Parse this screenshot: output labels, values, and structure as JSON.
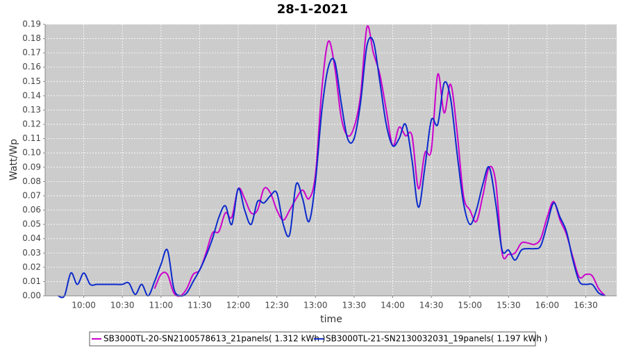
{
  "chart_data": {
    "type": "line",
    "title": "28-1-2021",
    "x_label": "time",
    "y_label": "Watt/Wp",
    "xlim": [
      "09:30",
      "16:54"
    ],
    "xticks": [
      "10:00",
      "10:30",
      "11:00",
      "11:30",
      "12:00",
      "12:30",
      "13:00",
      "13:30",
      "14:00",
      "14:30",
      "15:00",
      "15:30",
      "16:00",
      "16:30"
    ],
    "ylim": [
      0,
      0.19
    ],
    "yticks": [
      {
        "value": 0,
        "label": "0.00"
      },
      {
        "value": 0.01,
        "label": "0.01"
      },
      {
        "value": 0.02,
        "label": "0.02"
      },
      {
        "value": 0.03,
        "label": "0.03"
      },
      {
        "value": 0.04,
        "label": "0.04"
      },
      {
        "value": 0.05,
        "label": "0.05"
      },
      {
        "value": 0.06,
        "label": "0.06"
      },
      {
        "value": 0.07,
        "label": "0.07"
      },
      {
        "value": 0.08,
        "label": "0.08"
      },
      {
        "value": 0.09,
        "label": "0.09"
      },
      {
        "value": 0.1,
        "label": "0.10"
      },
      {
        "value": 0.11,
        "label": "0.11"
      },
      {
        "value": 0.12,
        "label": "0.12"
      },
      {
        "value": 0.13,
        "label": "0.13"
      },
      {
        "value": 0.14,
        "label": "0.14"
      },
      {
        "value": 0.15,
        "label": "0.15"
      },
      {
        "value": 0.16,
        "label": "0.16"
      },
      {
        "value": 0.17,
        "label": "0.17"
      },
      {
        "value": 0.18,
        "label": "0.18"
      },
      {
        "value": 0.19,
        "label": "0.19"
      }
    ],
    "grid": true,
    "x": [
      "09:40",
      "09:45",
      "09:50",
      "09:55",
      "10:00",
      "10:05",
      "10:10",
      "10:15",
      "10:20",
      "10:25",
      "10:30",
      "10:35",
      "10:40",
      "10:45",
      "10:50",
      "10:55",
      "11:00",
      "11:05",
      "11:10",
      "11:15",
      "11:20",
      "11:25",
      "11:30",
      "11:35",
      "11:40",
      "11:45",
      "11:50",
      "11:55",
      "12:00",
      "12:05",
      "12:10",
      "12:15",
      "12:20",
      "12:25",
      "12:30",
      "12:35",
      "12:40",
      "12:45",
      "12:50",
      "12:55",
      "13:00",
      "13:05",
      "13:10",
      "13:15",
      "13:20",
      "13:25",
      "13:30",
      "13:35",
      "13:40",
      "13:45",
      "13:50",
      "13:55",
      "14:00",
      "14:05",
      "14:10",
      "14:15",
      "14:20",
      "14:25",
      "14:30",
      "14:35",
      "14:40",
      "14:45",
      "14:50",
      "14:55",
      "15:00",
      "15:05",
      "15:10",
      "15:15",
      "15:20",
      "15:25",
      "15:30",
      "15:35",
      "15:40",
      "15:45",
      "15:50",
      "15:55",
      "16:00",
      "16:05",
      "16:10",
      "16:15",
      "16:20",
      "16:25",
      "16:30",
      "16:35",
      "16:40",
      "16:45"
    ],
    "series": [
      {
        "name": "SB3000TL-20-SN2100578613_21panels( 1.312 kWh )",
        "color": "#cc00cc",
        "values": [
          null,
          null,
          null,
          null,
          null,
          null,
          null,
          null,
          null,
          null,
          null,
          null,
          null,
          null,
          null,
          0.005,
          0.015,
          0.015,
          0.002,
          0,
          0.005,
          0.015,
          0.018,
          0.03,
          0.044,
          0.045,
          0.058,
          0.055,
          0.075,
          0.068,
          0.058,
          0.06,
          0.075,
          0.072,
          0.06,
          0.053,
          0.06,
          0.068,
          0.074,
          0.068,
          0.085,
          0.145,
          0.178,
          0.16,
          0.125,
          0.112,
          0.118,
          0.14,
          0.188,
          0.17,
          0.155,
          0.13,
          0.105,
          0.118,
          0.112,
          0.112,
          0.075,
          0.1,
          0.102,
          0.155,
          0.128,
          0.148,
          0.115,
          0.07,
          0.06,
          0.052,
          0.07,
          0.09,
          0.08,
          0.03,
          0.029,
          0.03,
          0.037,
          0.037,
          0.036,
          0.04,
          0.055,
          0.066,
          0.053,
          0.043,
          0.027,
          0.013,
          0.015,
          0.014,
          0.005,
          0
        ]
      },
      {
        "name": "SB3000TL-21-SN2130032031_19panels( 1.197 kWh )",
        "color": "#0a2acc",
        "values": [
          0,
          0,
          0.016,
          0.008,
          0.016,
          0.008,
          0.008,
          0.008,
          0.008,
          0.008,
          0.008,
          0.009,
          0.001,
          0.008,
          0,
          0.01,
          0.022,
          0.032,
          0.005,
          0,
          0.002,
          0.01,
          0.018,
          0.028,
          0.04,
          0.055,
          0.063,
          0.05,
          0.075,
          0.06,
          0.05,
          0.066,
          0.065,
          0.07,
          0.072,
          0.05,
          0.043,
          0.078,
          0.068,
          0.052,
          0.08,
          0.13,
          0.16,
          0.164,
          0.135,
          0.11,
          0.11,
          0.135,
          0.175,
          0.178,
          0.15,
          0.12,
          0.105,
          0.11,
          0.12,
          0.095,
          0.062,
          0.09,
          0.123,
          0.12,
          0.149,
          0.138,
          0.1,
          0.065,
          0.05,
          0.06,
          0.078,
          0.09,
          0.065,
          0.032,
          0.032,
          0.025,
          0.032,
          0.033,
          0.033,
          0.035,
          0.05,
          0.065,
          0.055,
          0.045,
          0.025,
          0.01,
          0.008,
          0.008,
          0.002,
          0
        ]
      }
    ]
  }
}
